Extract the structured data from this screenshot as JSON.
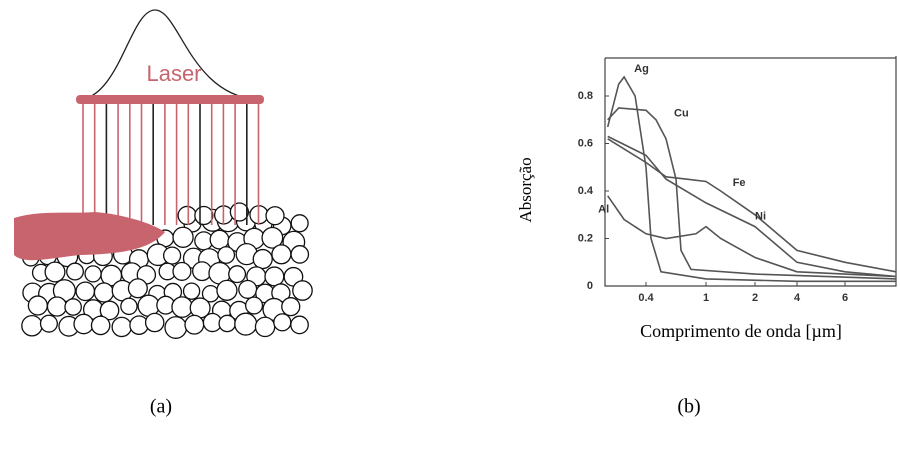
{
  "panel_a": {
    "laser_label": "Laser",
    "caption": "(a)"
  },
  "chart_data": {
    "type": "line",
    "ylabel": "Absorção",
    "xlabel": "Comprimento de onda [µm]",
    "xlim": [
      0.25,
      10
    ],
    "xticks": [
      0.4,
      1,
      2,
      4,
      6
    ],
    "ylim": [
      0,
      0.96
    ],
    "yticks": [
      0,
      0.2,
      0.4,
      0.6,
      0.8
    ],
    "series": [
      {
        "name": "Ag",
        "color": "#555555",
        "x": [
          0.26,
          0.3,
          0.32,
          0.36,
          0.4,
          0.45,
          0.55,
          1,
          4,
          10
        ],
        "values": [
          0.67,
          0.85,
          0.88,
          0.8,
          0.5,
          0.2,
          0.06,
          0.03,
          0.02,
          0.02
        ]
      },
      {
        "name": "Cu",
        "color": "#555555",
        "x": [
          0.26,
          0.3,
          0.4,
          0.5,
          0.6,
          0.7,
          0.75,
          0.85,
          2,
          10
        ],
        "values": [
          0.7,
          0.75,
          0.74,
          0.7,
          0.62,
          0.45,
          0.15,
          0.07,
          0.05,
          0.03
        ]
      },
      {
        "name": "Fe",
        "color": "#555555",
        "x": [
          0.26,
          0.4,
          0.6,
          0.8,
          1,
          1.3,
          2,
          4,
          6,
          10
        ],
        "values": [
          0.62,
          0.52,
          0.46,
          0.45,
          0.44,
          0.4,
          0.3,
          0.15,
          0.1,
          0.06
        ]
      },
      {
        "name": "Ni",
        "color": "#555555",
        "x": [
          0.26,
          0.4,
          0.6,
          1,
          2,
          4,
          6,
          10
        ],
        "values": [
          0.63,
          0.55,
          0.45,
          0.35,
          0.25,
          0.1,
          0.06,
          0.04
        ]
      },
      {
        "name": "Al",
        "color": "#555555",
        "x": [
          0.26,
          0.32,
          0.4,
          0.6,
          0.9,
          1,
          1.3,
          2,
          4,
          10
        ],
        "values": [
          0.38,
          0.28,
          0.22,
          0.2,
          0.22,
          0.25,
          0.2,
          0.12,
          0.06,
          0.04
        ]
      }
    ]
  },
  "panel_b": {
    "caption": "(b)"
  }
}
